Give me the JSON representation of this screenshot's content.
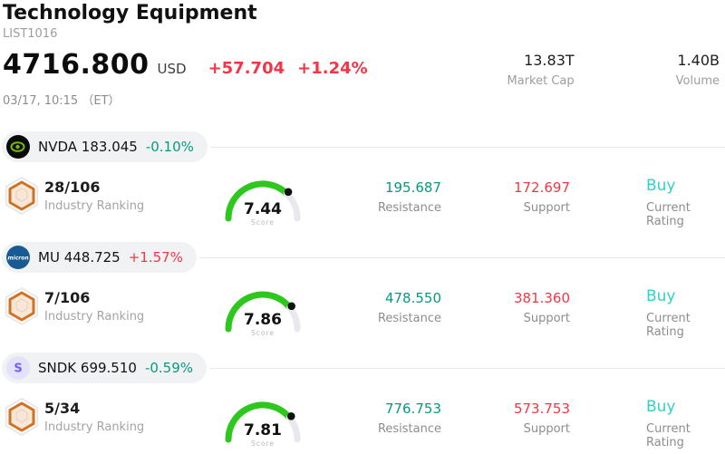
{
  "header": {
    "title": "Technology Equipment",
    "list_id": "LIST1016",
    "price": "4716.800",
    "currency": "USD",
    "change": "+57.704",
    "change_pct": "+1.24%",
    "timestamp": "03/17, 10:15 （ET）",
    "market_cap": {
      "value": "13.83T",
      "label": "Market Cap"
    },
    "volume": {
      "value": "1.40B",
      "label": "Volume"
    }
  },
  "colors": {
    "up": "#f23645",
    "down": "#089981",
    "resistance": "#089981",
    "support": "#f23645",
    "rating_buy": "#2fd3c3",
    "gauge_green": "#2ec71e",
    "gauge_track": "#e8e8ee",
    "gauge_dot": "#111111",
    "pill_background": "#f1f2f4"
  },
  "stocks": [
    {
      "ticker": "NVDA",
      "price": "183.045",
      "change_pct": "-0.10%",
      "direction": "down",
      "logo": {
        "kind": "nvda",
        "text": "",
        "bg": "#0a0a0a",
        "fg": "#76b900"
      },
      "ranking": "28/106",
      "ranking_label": "Industry Ranking",
      "score": 7.44,
      "score_label": "Score",
      "resistance": "195.687",
      "resistance_label": "Resistance",
      "support": "172.697",
      "support_label": "Support",
      "rating": "Buy",
      "rating_label": "Current Rating"
    },
    {
      "ticker": "MU",
      "price": "448.725",
      "change_pct": "+1.57%",
      "direction": "up",
      "logo": {
        "kind": "mu",
        "text": "micron",
        "bg": "#175a94",
        "fg": "#ffffff"
      },
      "ranking": "7/106",
      "ranking_label": "Industry Ranking",
      "score": 7.86,
      "score_label": "Score",
      "resistance": "478.550",
      "resistance_label": "Resistance",
      "support": "381.360",
      "support_label": "Support",
      "rating": "Buy",
      "rating_label": "Current Rating"
    },
    {
      "ticker": "SNDK",
      "price": "699.510",
      "change_pct": "-0.59%",
      "direction": "down",
      "logo": {
        "kind": "sndk",
        "text": "S",
        "bg": "#e4e1fb",
        "fg": "#7661f0"
      },
      "ranking": "5/34",
      "ranking_label": "Industry Ranking",
      "score": 7.81,
      "score_label": "Score",
      "resistance": "776.753",
      "resistance_label": "Resistance",
      "support": "573.753",
      "support_label": "Support",
      "rating": "Buy",
      "rating_label": "Current Rating"
    }
  ]
}
